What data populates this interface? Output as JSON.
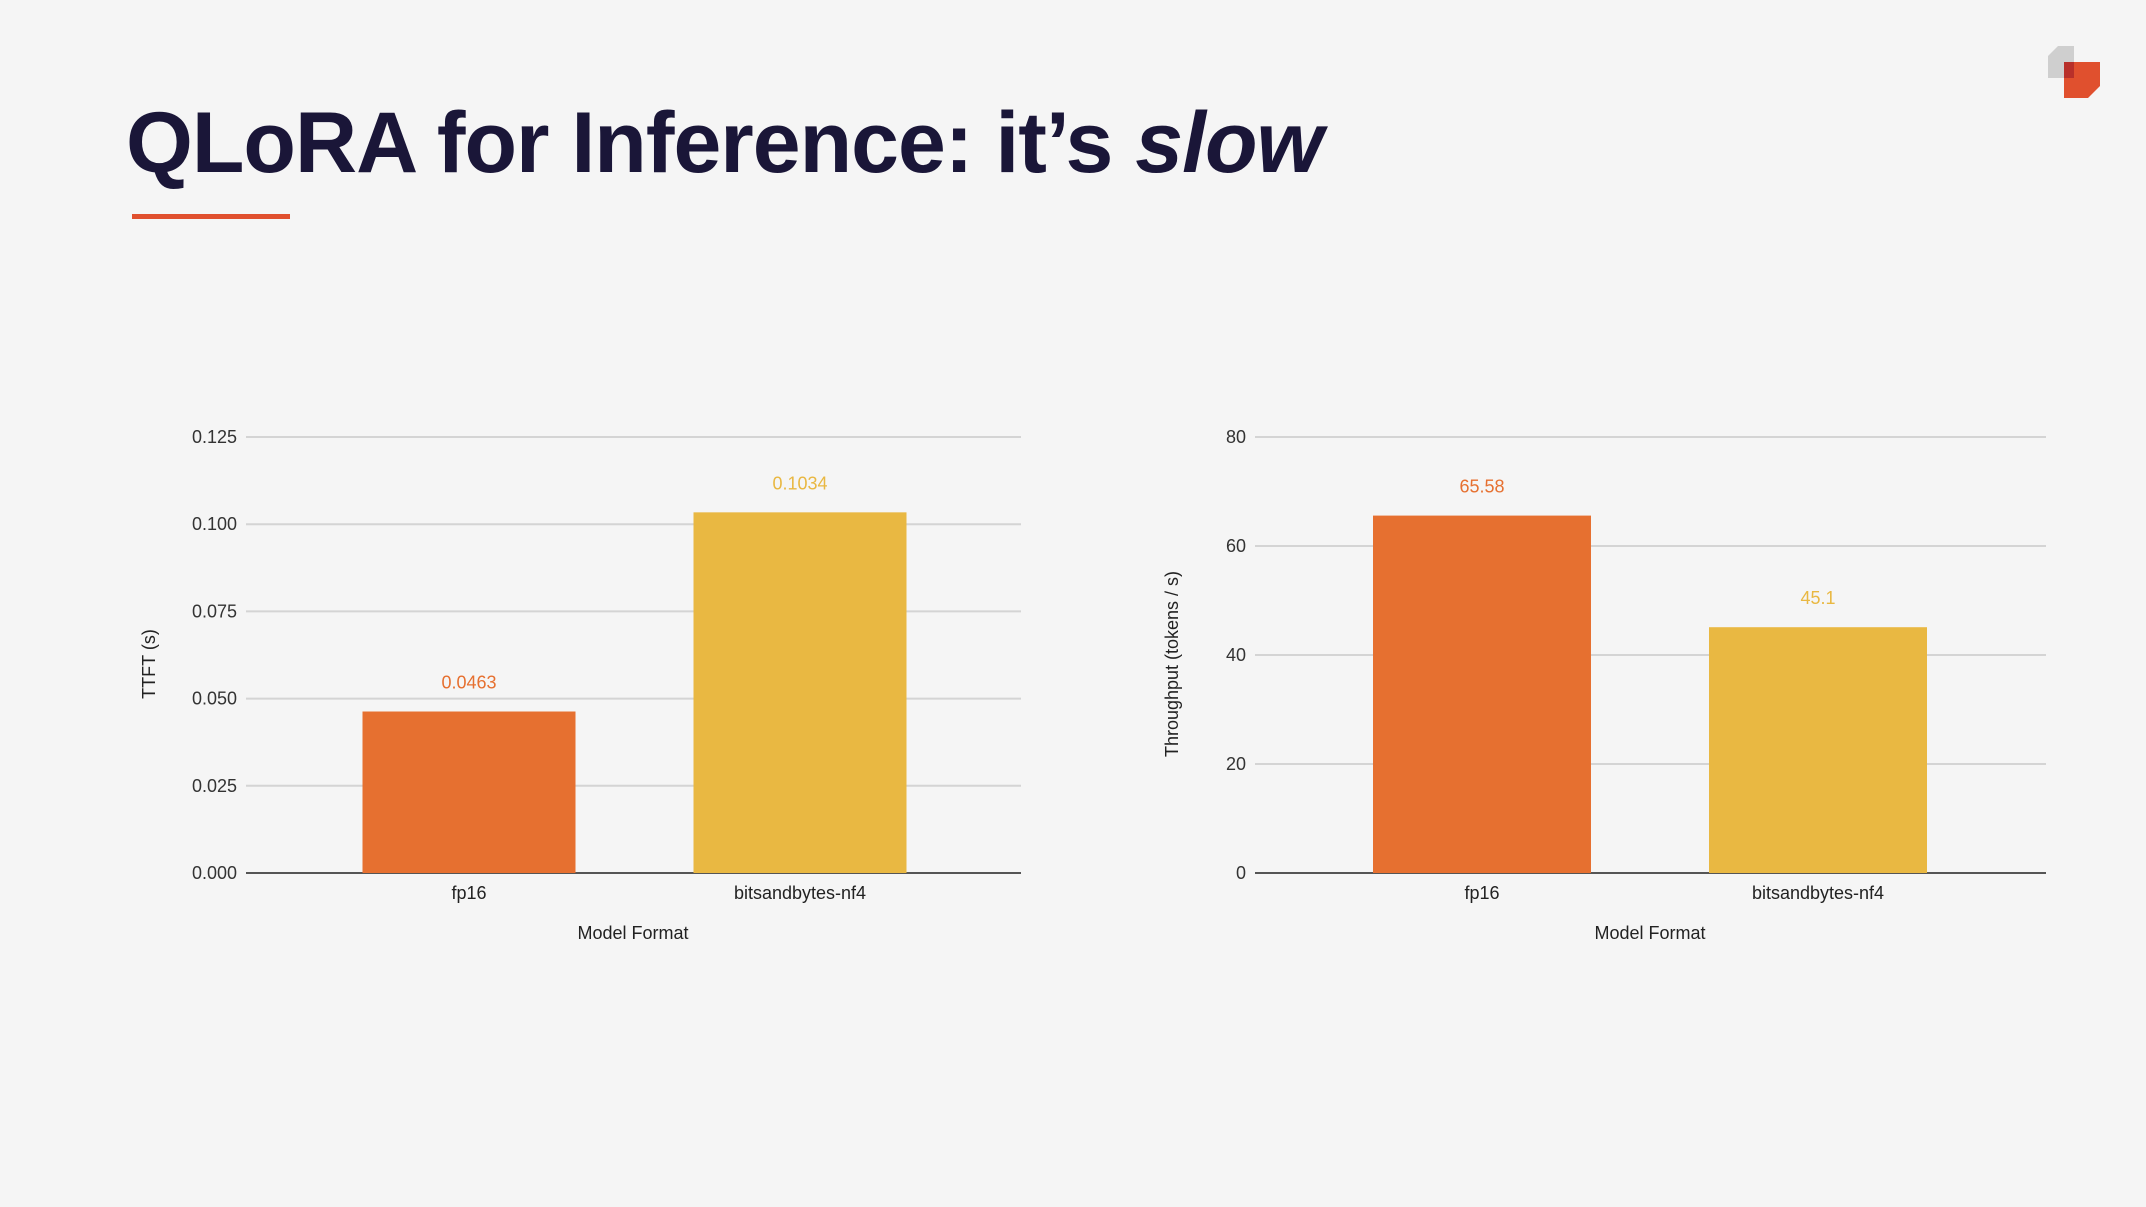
{
  "slide": {
    "title_main": "QLoRA for Inference: it’s ",
    "title_emphasis": "slow",
    "accent_color": "#e0502e",
    "logo_icon": "brand-logo-icon"
  },
  "chart_data": [
    {
      "type": "bar",
      "categories": [
        "fp16",
        "bitsandbytes-nf4"
      ],
      "values": [
        0.0463,
        0.1034
      ],
      "data_labels": [
        "0.0463",
        "0.1034"
      ],
      "colors": [
        "#e67030",
        "#e9b842"
      ],
      "xlabel": "Model Format",
      "ylabel": "TTFT (s)",
      "ylim": [
        0,
        0.125
      ],
      "yticks": [
        "0.000",
        "0.025",
        "0.050",
        "0.075",
        "0.100",
        "0.125"
      ],
      "grid": true
    },
    {
      "type": "bar",
      "categories": [
        "fp16",
        "bitsandbytes-nf4"
      ],
      "values": [
        65.58,
        45.1
      ],
      "data_labels": [
        "65.58",
        "45.1"
      ],
      "colors": [
        "#e67030",
        "#e9b842"
      ],
      "xlabel": "Model Format",
      "ylabel": "Throughput (tokens / s)",
      "ylim": [
        0,
        80
      ],
      "yticks": [
        "0",
        "20",
        "40",
        "60",
        "80"
      ],
      "grid": true
    }
  ]
}
